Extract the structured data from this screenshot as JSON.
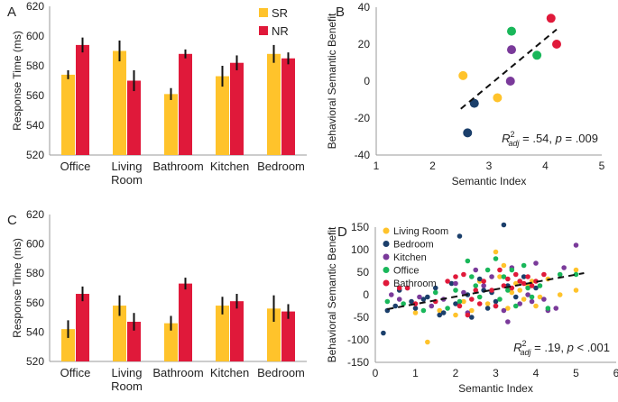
{
  "colors": {
    "SR": "#FFC32B",
    "NR": "#E0193A",
    "axis": "#9a9a9a",
    "err": "#111111"
  },
  "chart_data": [
    {
      "panel": "A",
      "type": "bar",
      "ylabel": "Response Time (ms)",
      "ylim": [
        520,
        620
      ],
      "yticks": [
        520,
        540,
        560,
        580,
        600,
        620
      ],
      "categories": [
        [
          "Office"
        ],
        [
          "Living",
          "Room"
        ],
        [
          "Bathroom"
        ],
        [
          "Kitchen"
        ],
        [
          "Bedroom"
        ]
      ],
      "legend": [
        "SR",
        "NR"
      ],
      "series": [
        {
          "name": "SR",
          "values": [
            574,
            590,
            561,
            573,
            588
          ],
          "errors": [
            3,
            7,
            4,
            7,
            6
          ]
        },
        {
          "name": "NR",
          "values": [
            594,
            570,
            588,
            582,
            585
          ],
          "errors": [
            5,
            7,
            3,
            5,
            4
          ]
        }
      ]
    },
    {
      "panel": "B",
      "type": "scatter",
      "xlabel": "Semantic Index",
      "ylabel": "Behavioral Semantic Benefit",
      "xlim": [
        1,
        5
      ],
      "ylim": [
        -40,
        40
      ],
      "xticks": [
        1,
        2,
        3,
        4,
        5
      ],
      "yticks": [
        -40,
        -20,
        0,
        20,
        40
      ],
      "annotation": {
        "r": "R",
        "sup": "2",
        "sub": "adj",
        "rest": " = .54, ",
        "p": "p",
        "tail": " = .009"
      },
      "points": [
        {
          "x": 2.54,
          "y": 3,
          "color": "#FFC32B"
        },
        {
          "x": 3.15,
          "y": -9,
          "color": "#FFC32B"
        },
        {
          "x": 2.62,
          "y": -28,
          "color": "#1B3F6B"
        },
        {
          "x": 2.74,
          "y": -12,
          "color": "#1B3F6B"
        },
        {
          "x": 3.38,
          "y": 0,
          "color": "#7A3A9A"
        },
        {
          "x": 3.4,
          "y": 17,
          "color": "#7A3A9A"
        },
        {
          "x": 3.4,
          "y": 27,
          "color": "#19B75A"
        },
        {
          "x": 3.85,
          "y": 14,
          "color": "#19B75A"
        },
        {
          "x": 4.1,
          "y": 34,
          "color": "#E0193A"
        },
        {
          "x": 4.2,
          "y": 20,
          "color": "#E0193A"
        }
      ],
      "fit": [
        [
          2.5,
          -15
        ],
        [
          4.2,
          28
        ]
      ]
    },
    {
      "panel": "C",
      "type": "bar",
      "ylabel": "Response Time (ms)",
      "ylim": [
        520,
        620
      ],
      "yticks": [
        520,
        540,
        560,
        580,
        600,
        620
      ],
      "categories": [
        [
          "Office"
        ],
        [
          "Living",
          "Room"
        ],
        [
          "Bathroom"
        ],
        [
          "Kitchen"
        ],
        [
          "Bedroom"
        ]
      ],
      "series": [
        {
          "name": "SR",
          "values": [
            542,
            558,
            546,
            558,
            556
          ],
          "errors": [
            6,
            7,
            5,
            6,
            9
          ]
        },
        {
          "name": "NR",
          "values": [
            566,
            547,
            573,
            561,
            554
          ],
          "errors": [
            5,
            6,
            4,
            5,
            5
          ]
        }
      ]
    },
    {
      "panel": "D",
      "type": "scatter",
      "xlabel": "Semantic Index",
      "ylabel": "Behavioral Semantic Benefit",
      "xlim": [
        0,
        6
      ],
      "ylim": [
        -150,
        150
      ],
      "xticks": [
        0,
        1,
        2,
        3,
        4,
        5,
        6
      ],
      "yticks": [
        -150,
        -100,
        -50,
        0,
        50,
        100,
        150
      ],
      "annotation": {
        "r": "R",
        "sup": "2",
        "sub": "adj",
        "rest": " = .19, ",
        "p": "p",
        "tail": " < .001"
      },
      "legend": [
        {
          "name": "Living Room",
          "color": "#FFC32B"
        },
        {
          "name": "Bedroom",
          "color": "#1B3F6B"
        },
        {
          "name": "Kitchen",
          "color": "#7A3A9A"
        },
        {
          "name": "Office",
          "color": "#19B75A"
        },
        {
          "name": "Bathroom",
          "color": "#E0193A"
        }
      ],
      "fit": [
        [
          0.3,
          -32
        ],
        [
          5.2,
          48
        ]
      ],
      "groups": [
        {
          "color": "#FFC32B",
          "points": [
            [
              1.0,
              -40
            ],
            [
              1.3,
              -105
            ],
            [
              1.6,
              -35
            ],
            [
              2.2,
              -15
            ],
            [
              2.4,
              -35
            ],
            [
              2.6,
              30
            ],
            [
              2.8,
              -20
            ],
            [
              3.0,
              95
            ],
            [
              3.1,
              40
            ],
            [
              3.2,
              65
            ],
            [
              3.3,
              -30
            ],
            [
              3.5,
              25
            ],
            [
              3.6,
              10
            ],
            [
              3.7,
              -10
            ],
            [
              3.9,
              30
            ],
            [
              4.1,
              -5
            ],
            [
              4.3,
              35
            ],
            [
              4.6,
              0
            ],
            [
              5.0,
              55
            ],
            [
              5.0,
              10
            ],
            [
              3.4,
              5
            ],
            [
              2.0,
              -45
            ],
            [
              4.0,
              -25
            ],
            [
              3.8,
              20
            ]
          ]
        },
        {
          "color": "#1B3F6B",
          "points": [
            [
              0.2,
              -85
            ],
            [
              0.3,
              -35
            ],
            [
              0.5,
              -25
            ],
            [
              0.6,
              10
            ],
            [
              0.9,
              -15
            ],
            [
              1.0,
              -30
            ],
            [
              1.3,
              -5
            ],
            [
              1.5,
              15
            ],
            [
              1.7,
              -40
            ],
            [
              1.9,
              25
            ],
            [
              2.0,
              -20
            ],
            [
              2.1,
              130
            ],
            [
              2.3,
              0
            ],
            [
              2.4,
              -50
            ],
            [
              2.6,
              35
            ],
            [
              2.8,
              -30
            ],
            [
              2.9,
              5
            ],
            [
              3.0,
              -15
            ],
            [
              3.2,
              155
            ],
            [
              3.3,
              20
            ],
            [
              3.5,
              -5
            ],
            [
              3.7,
              40
            ],
            [
              4.0,
              15
            ],
            [
              1.2,
              -10
            ],
            [
              2.7,
              10
            ],
            [
              1.6,
              -45
            ]
          ]
        },
        {
          "color": "#7A3A9A",
          "points": [
            [
              0.4,
              0
            ],
            [
              0.6,
              -10
            ],
            [
              0.8,
              15
            ],
            [
              1.1,
              -5
            ],
            [
              1.7,
              -10
            ],
            [
              2.0,
              25
            ],
            [
              2.3,
              -40
            ],
            [
              2.5,
              55
            ],
            [
              2.7,
              20
            ],
            [
              3.0,
              -25
            ],
            [
              3.2,
              -35
            ],
            [
              3.4,
              60
            ],
            [
              3.6,
              -20
            ],
            [
              3.8,
              0
            ],
            [
              4.0,
              70
            ],
            [
              4.2,
              -10
            ],
            [
              4.3,
              -35
            ],
            [
              4.5,
              -30
            ],
            [
              4.7,
              60
            ],
            [
              5.0,
              110
            ],
            [
              3.3,
              -60
            ],
            [
              2.9,
              40
            ],
            [
              3.9,
              -15
            ],
            [
              1.4,
              -25
            ],
            [
              2.2,
              5
            ]
          ]
        },
        {
          "color": "#19B75A",
          "points": [
            [
              0.3,
              -15
            ],
            [
              0.7,
              -20
            ],
            [
              1.2,
              -35
            ],
            [
              1.5,
              5
            ],
            [
              1.8,
              -30
            ],
            [
              2.1,
              -15
            ],
            [
              2.3,
              75
            ],
            [
              2.4,
              40
            ],
            [
              2.5,
              20
            ],
            [
              2.6,
              -5
            ],
            [
              2.8,
              55
            ],
            [
              3.0,
              80
            ],
            [
              3.1,
              -10
            ],
            [
              3.2,
              40
            ],
            [
              3.3,
              10
            ],
            [
              3.4,
              55
            ],
            [
              3.5,
              -25
            ],
            [
              3.6,
              30
            ],
            [
              3.8,
              15
            ],
            [
              3.9,
              -5
            ],
            [
              4.1,
              20
            ],
            [
              4.3,
              -30
            ],
            [
              4.6,
              45
            ],
            [
              5.0,
              45
            ],
            [
              2.0,
              10
            ],
            [
              3.7,
              65
            ]
          ]
        },
        {
          "color": "#E0193A",
          "points": [
            [
              0.6,
              15
            ],
            [
              0.8,
              15
            ],
            [
              1.0,
              -20
            ],
            [
              1.5,
              -15
            ],
            [
              1.8,
              30
            ],
            [
              2.0,
              40
            ],
            [
              2.1,
              -25
            ],
            [
              2.2,
              45
            ],
            [
              2.4,
              -10
            ],
            [
              2.6,
              -20
            ],
            [
              2.7,
              30
            ],
            [
              2.9,
              10
            ],
            [
              3.0,
              -25
            ],
            [
              3.1,
              55
            ],
            [
              3.2,
              20
            ],
            [
              3.3,
              35
            ],
            [
              3.4,
              15
            ],
            [
              3.5,
              45
            ],
            [
              3.6,
              30
            ],
            [
              3.7,
              25
            ],
            [
              3.8,
              40
            ],
            [
              4.0,
              30
            ],
            [
              4.2,
              45
            ],
            [
              2.3,
              -45
            ],
            [
              2.5,
              10
            ],
            [
              3.9,
              20
            ]
          ]
        }
      ]
    }
  ]
}
